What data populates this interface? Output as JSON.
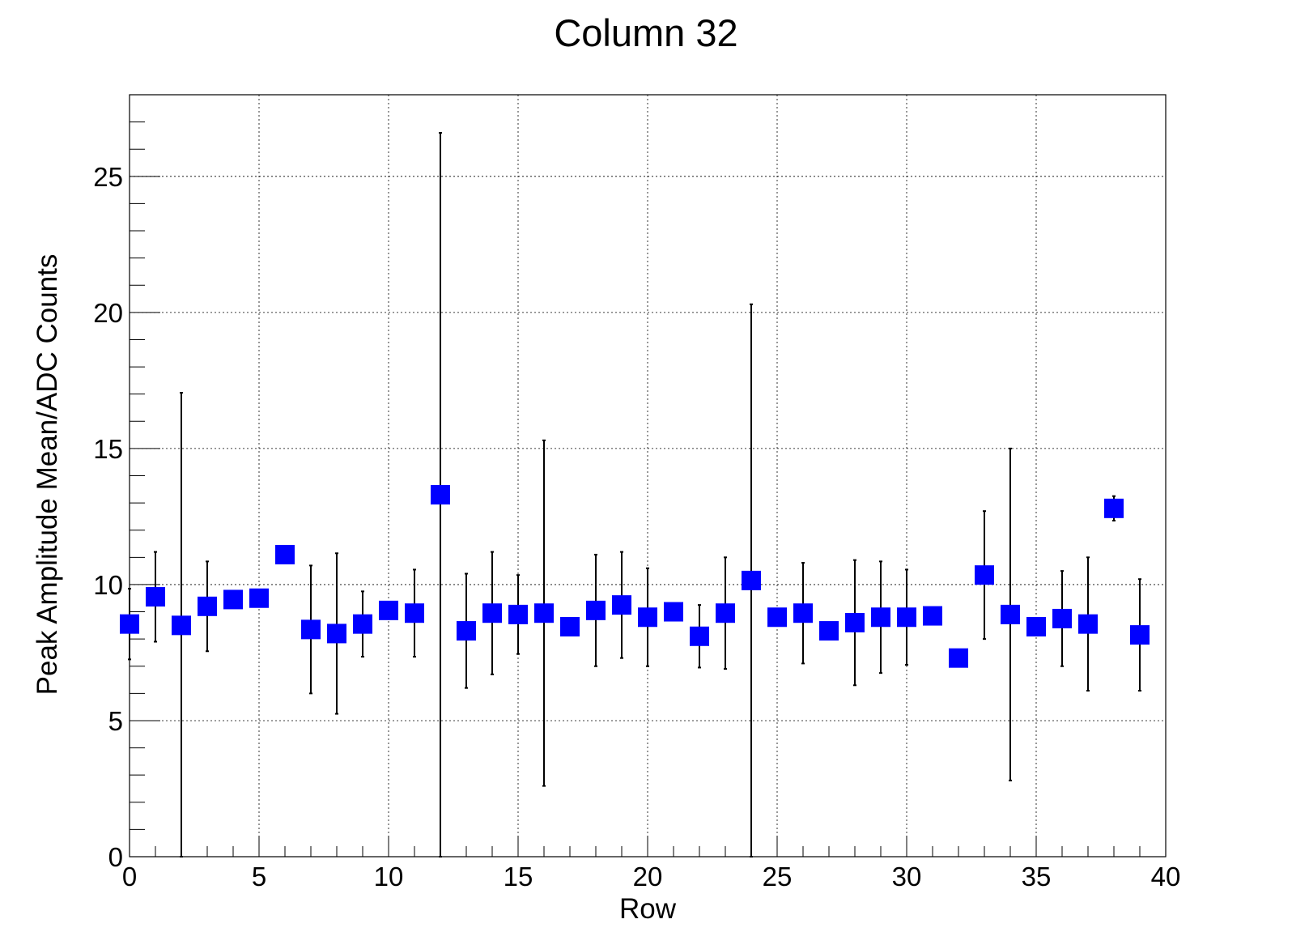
{
  "chart_data": {
    "type": "scatter",
    "title": "Column 32",
    "xlabel": "Row",
    "ylabel": "Peak Amplitude Mean/ADC Counts",
    "xlim": [
      0,
      40
    ],
    "ylim": [
      0,
      28
    ],
    "xticks": [
      "0",
      "5",
      "10",
      "15",
      "20",
      "25",
      "30",
      "35",
      "40"
    ],
    "yticks": [
      "0",
      "5",
      "10",
      "15",
      "20",
      "25"
    ],
    "grid": true,
    "marker_color": "#0000ff",
    "errorbar_color": "#000000",
    "points": [
      {
        "x": 0,
        "y": 8.55,
        "err": 1.3
      },
      {
        "x": 1,
        "y": 9.55,
        "err": 1.65
      },
      {
        "x": 2,
        "y": 8.5,
        "err": 8.55
      },
      {
        "x": 3,
        "y": 9.2,
        "err": 1.65
      },
      {
        "x": 4,
        "y": 9.45,
        "err": 0.0
      },
      {
        "x": 5,
        "y": 9.5,
        "err": 0.0
      },
      {
        "x": 6,
        "y": 11.1,
        "err": 0.0
      },
      {
        "x": 7,
        "y": 8.35,
        "err": 2.35
      },
      {
        "x": 8,
        "y": 8.2,
        "err": 2.95
      },
      {
        "x": 9,
        "y": 8.55,
        "err": 1.2
      },
      {
        "x": 10,
        "y": 9.05,
        "err": 0.0
      },
      {
        "x": 11,
        "y": 8.95,
        "err": 1.6
      },
      {
        "x": 12,
        "y": 13.3,
        "err": 13.3
      },
      {
        "x": 13,
        "y": 8.3,
        "err": 2.1
      },
      {
        "x": 14,
        "y": 8.95,
        "err": 2.25
      },
      {
        "x": 15,
        "y": 8.9,
        "err": 1.45
      },
      {
        "x": 16,
        "y": 8.95,
        "err": 6.35
      },
      {
        "x": 17,
        "y": 8.45,
        "err": 0.0
      },
      {
        "x": 18,
        "y": 9.05,
        "err": 2.05
      },
      {
        "x": 19,
        "y": 9.25,
        "err": 1.95
      },
      {
        "x": 20,
        "y": 8.8,
        "err": 1.8
      },
      {
        "x": 21,
        "y": 9.0,
        "err": 0.0
      },
      {
        "x": 22,
        "y": 8.1,
        "err": 1.15
      },
      {
        "x": 23,
        "y": 8.95,
        "err": 2.05
      },
      {
        "x": 24,
        "y": 10.15,
        "err": 10.15
      },
      {
        "x": 25,
        "y": 8.8,
        "err": 0.0
      },
      {
        "x": 26,
        "y": 8.95,
        "err": 1.85
      },
      {
        "x": 27,
        "y": 8.3,
        "err": 0.0
      },
      {
        "x": 28,
        "y": 8.6,
        "err": 2.3
      },
      {
        "x": 29,
        "y": 8.8,
        "err": 2.05
      },
      {
        "x": 30,
        "y": 8.8,
        "err": 1.75
      },
      {
        "x": 31,
        "y": 8.85,
        "err": 0.0
      },
      {
        "x": 32,
        "y": 7.3,
        "err": 0.0
      },
      {
        "x": 33,
        "y": 10.35,
        "err": 2.35
      },
      {
        "x": 34,
        "y": 8.9,
        "err": 6.1
      },
      {
        "x": 35,
        "y": 8.45,
        "err": 0.0
      },
      {
        "x": 36,
        "y": 8.75,
        "err": 1.75
      },
      {
        "x": 37,
        "y": 8.55,
        "err": 2.45
      },
      {
        "x": 38,
        "y": 12.8,
        "err": 0.45
      },
      {
        "x": 39,
        "y": 8.15,
        "err": 2.05
      }
    ]
  }
}
